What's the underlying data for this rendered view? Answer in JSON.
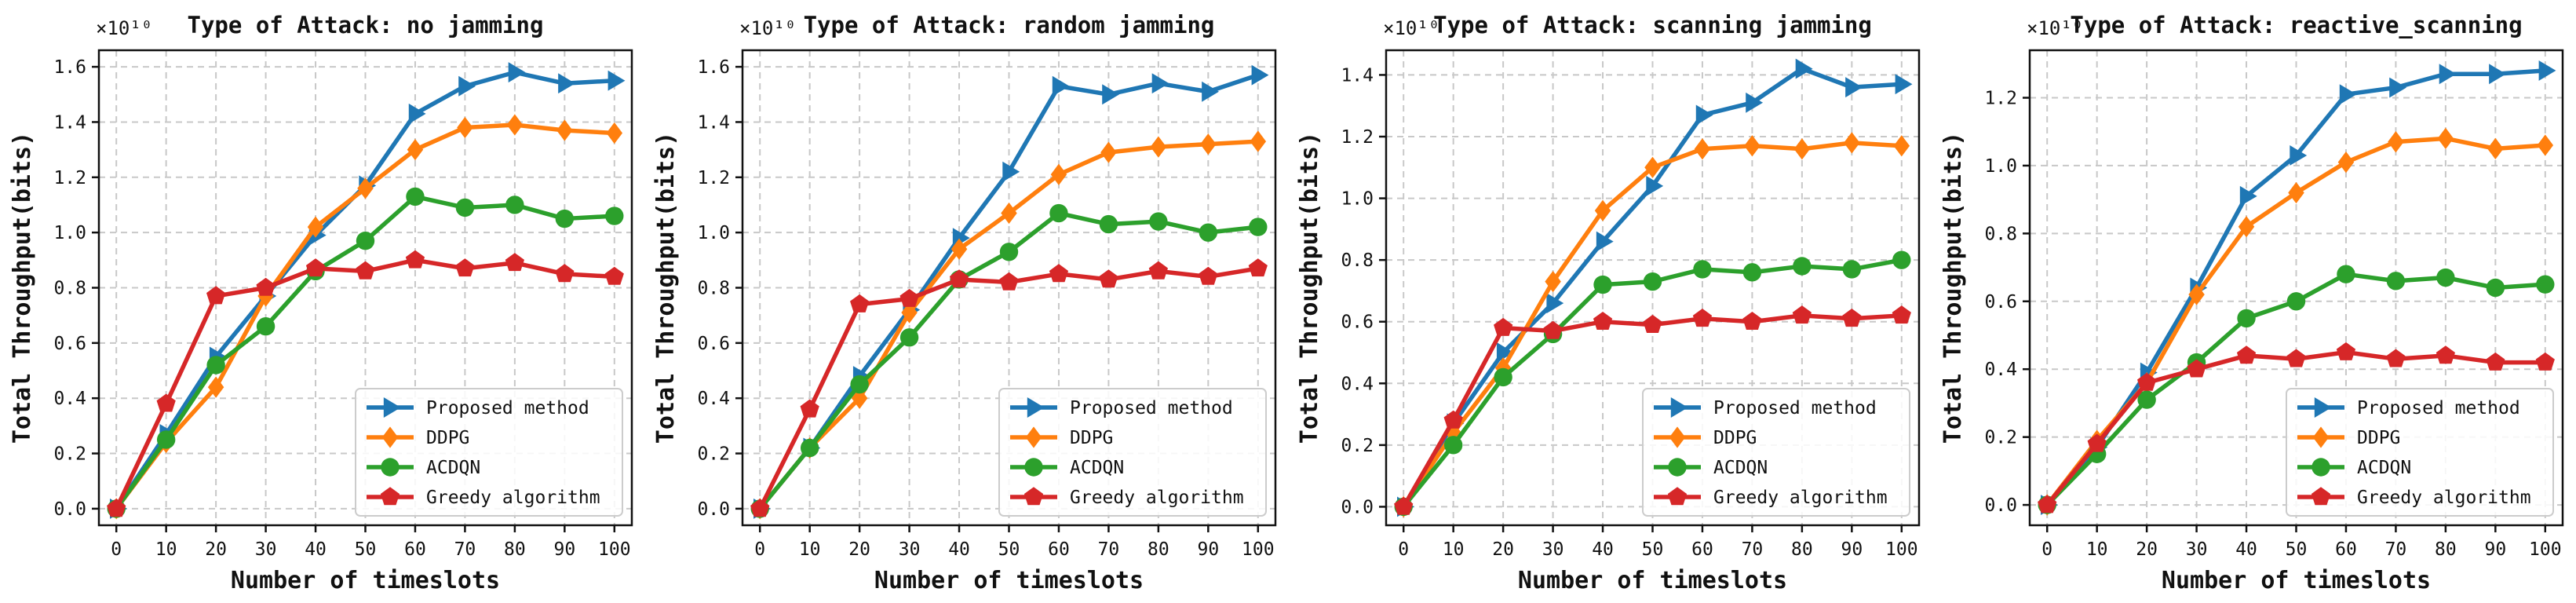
{
  "figure": {
    "exponent_label": "×10¹⁰",
    "xlabel": "Number of timeslots",
    "ylabel": "Total Throughput(bits)",
    "colors": {
      "Proposed method": "#1f77b4",
      "DDPG": "#ff7f0e",
      "ACDQN": "#2ca02c",
      "Greedy algorithm": "#d62728"
    },
    "markers": {
      "Proposed method": "triangle-right",
      "DDPG": "diamond",
      "ACDQN": "circle",
      "Greedy algorithm": "pentagon"
    }
  },
  "chart_data": [
    {
      "type": "line",
      "title": "Type of Attack: no jamming",
      "xlabel": "Number of timeslots",
      "ylabel": "Total Throughput(bits)",
      "y_multiplier": "×10¹⁰",
      "x": [
        0,
        10,
        20,
        30,
        40,
        50,
        60,
        70,
        80,
        90,
        100
      ],
      "xticks": [
        "0",
        "10",
        "20",
        "30",
        "40",
        "50",
        "60",
        "70",
        "80",
        "90",
        "100"
      ],
      "yticks": [
        "0.0",
        "0.2",
        "0.4",
        "0.6",
        "0.8",
        "1.0",
        "1.2",
        "1.4",
        "1.6"
      ],
      "ylim": [
        -0.06,
        1.66
      ],
      "grid": true,
      "legend_position": "lower-right",
      "series": [
        {
          "name": "Proposed method",
          "values": [
            0.0,
            0.27,
            0.55,
            0.77,
            0.99,
            1.17,
            1.43,
            1.53,
            1.58,
            1.54,
            1.55
          ]
        },
        {
          "name": "DDPG",
          "values": [
            0.0,
            0.24,
            0.44,
            0.77,
            1.02,
            1.16,
            1.3,
            1.38,
            1.39,
            1.37,
            1.36
          ]
        },
        {
          "name": "ACDQN",
          "values": [
            0.0,
            0.25,
            0.52,
            0.66,
            0.86,
            0.97,
            1.13,
            1.09,
            1.1,
            1.05,
            1.06
          ]
        },
        {
          "name": "Greedy algorithm",
          "values": [
            0.0,
            0.38,
            0.77,
            0.8,
            0.87,
            0.86,
            0.9,
            0.87,
            0.89,
            0.85,
            0.84
          ]
        }
      ]
    },
    {
      "type": "line",
      "title": "Type of Attack: random jamming",
      "xlabel": "Number of timeslots",
      "ylabel": "Total Throughput(bits)",
      "y_multiplier": "×10¹⁰",
      "x": [
        0,
        10,
        20,
        30,
        40,
        50,
        60,
        70,
        80,
        90,
        100
      ],
      "xticks": [
        "0",
        "10",
        "20",
        "30",
        "40",
        "50",
        "60",
        "70",
        "80",
        "90",
        "100"
      ],
      "yticks": [
        "0.0",
        "0.2",
        "0.4",
        "0.6",
        "0.8",
        "1.0",
        "1.2",
        "1.4",
        "1.6"
      ],
      "ylim": [
        -0.06,
        1.66
      ],
      "grid": true,
      "legend_position": "lower-right",
      "series": [
        {
          "name": "Proposed method",
          "values": [
            0.0,
            0.22,
            0.48,
            0.72,
            0.98,
            1.22,
            1.53,
            1.5,
            1.54,
            1.51,
            1.57
          ]
        },
        {
          "name": "DDPG",
          "values": [
            0.0,
            0.22,
            0.4,
            0.71,
            0.94,
            1.07,
            1.21,
            1.29,
            1.31,
            1.32,
            1.33
          ]
        },
        {
          "name": "ACDQN",
          "values": [
            0.0,
            0.22,
            0.45,
            0.62,
            0.83,
            0.93,
            1.07,
            1.03,
            1.04,
            1.0,
            1.02
          ]
        },
        {
          "name": "Greedy algorithm",
          "values": [
            0.0,
            0.36,
            0.74,
            0.76,
            0.83,
            0.82,
            0.85,
            0.83,
            0.86,
            0.84,
            0.87
          ]
        }
      ]
    },
    {
      "type": "line",
      "title": "Type of Attack: scanning jamming",
      "xlabel": "Number of timeslots",
      "ylabel": "Total Throughput(bits)",
      "y_multiplier": "×10¹⁰",
      "x": [
        0,
        10,
        20,
        30,
        40,
        50,
        60,
        70,
        80,
        90,
        100
      ],
      "xticks": [
        "0",
        "10",
        "20",
        "30",
        "40",
        "50",
        "60",
        "70",
        "80",
        "90",
        "100"
      ],
      "yticks": [
        "0.0",
        "0.2",
        "0.4",
        "0.6",
        "0.8",
        "1.0",
        "1.2",
        "1.4"
      ],
      "ylim": [
        -0.06,
        1.48
      ],
      "grid": true,
      "legend_position": "lower-right",
      "series": [
        {
          "name": "Proposed method",
          "values": [
            0.0,
            0.27,
            0.5,
            0.66,
            0.86,
            1.04,
            1.27,
            1.31,
            1.42,
            1.36,
            1.37
          ]
        },
        {
          "name": "DDPG",
          "values": [
            0.0,
            0.24,
            0.45,
            0.73,
            0.96,
            1.1,
            1.16,
            1.17,
            1.16,
            1.18,
            1.17
          ]
        },
        {
          "name": "ACDQN",
          "values": [
            0.0,
            0.2,
            0.42,
            0.56,
            0.72,
            0.73,
            0.77,
            0.76,
            0.78,
            0.77,
            0.8
          ]
        },
        {
          "name": "Greedy algorithm",
          "values": [
            0.0,
            0.28,
            0.58,
            0.57,
            0.6,
            0.59,
            0.61,
            0.6,
            0.62,
            0.61,
            0.62
          ]
        }
      ]
    },
    {
      "type": "line",
      "title": "Type of Attack: reactive_scanning",
      "xlabel": "Number of timeslots",
      "ylabel": "Total Throughput(bits)",
      "y_multiplier": "×10¹⁰",
      "x": [
        0,
        10,
        20,
        30,
        40,
        50,
        60,
        70,
        80,
        90,
        100
      ],
      "xticks": [
        "0",
        "10",
        "20",
        "30",
        "40",
        "50",
        "60",
        "70",
        "80",
        "90",
        "100"
      ],
      "yticks": [
        "0.0",
        "0.2",
        "0.4",
        "0.6",
        "0.8",
        "1.0",
        "1.2"
      ],
      "ylim": [
        -0.06,
        1.34
      ],
      "grid": true,
      "legend_position": "lower-right",
      "series": [
        {
          "name": "Proposed method",
          "values": [
            0.0,
            0.17,
            0.39,
            0.64,
            0.91,
            1.03,
            1.21,
            1.23,
            1.27,
            1.27,
            1.28
          ]
        },
        {
          "name": "DDPG",
          "values": [
            0.0,
            0.19,
            0.36,
            0.62,
            0.82,
            0.92,
            1.01,
            1.07,
            1.08,
            1.05,
            1.06
          ]
        },
        {
          "name": "ACDQN",
          "values": [
            0.0,
            0.15,
            0.31,
            0.42,
            0.55,
            0.6,
            0.68,
            0.66,
            0.67,
            0.64,
            0.65
          ]
        },
        {
          "name": "Greedy algorithm",
          "values": [
            0.0,
            0.18,
            0.36,
            0.4,
            0.44,
            0.43,
            0.45,
            0.43,
            0.44,
            0.42,
            0.42
          ]
        }
      ]
    }
  ]
}
